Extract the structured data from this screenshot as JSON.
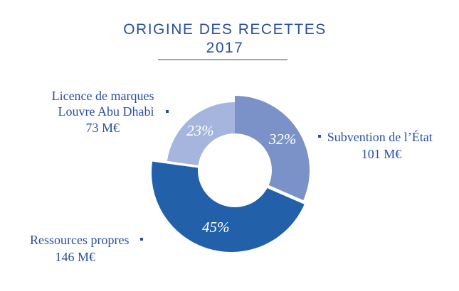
{
  "chart_data": {
    "type": "pie",
    "title": "ORIGINE DES RECETTES",
    "subtitle": "2017",
    "slices": [
      {
        "label_lines": [
          "Subvention de l’État",
          "101 M€"
        ],
        "pct_label": "32%",
        "value": 101,
        "color": "#7a92c8"
      },
      {
        "label_lines": [
          "Ressources propres",
          "146 M€"
        ],
        "pct_label": "45%",
        "value": 146,
        "color": "#2260aa"
      },
      {
        "label_lines": [
          "Licence de marques",
          "Louvre Abu Dhabi",
          "73 M€"
        ],
        "pct_label": "23%",
        "value": 73,
        "color": "#a5b5dd"
      }
    ]
  }
}
